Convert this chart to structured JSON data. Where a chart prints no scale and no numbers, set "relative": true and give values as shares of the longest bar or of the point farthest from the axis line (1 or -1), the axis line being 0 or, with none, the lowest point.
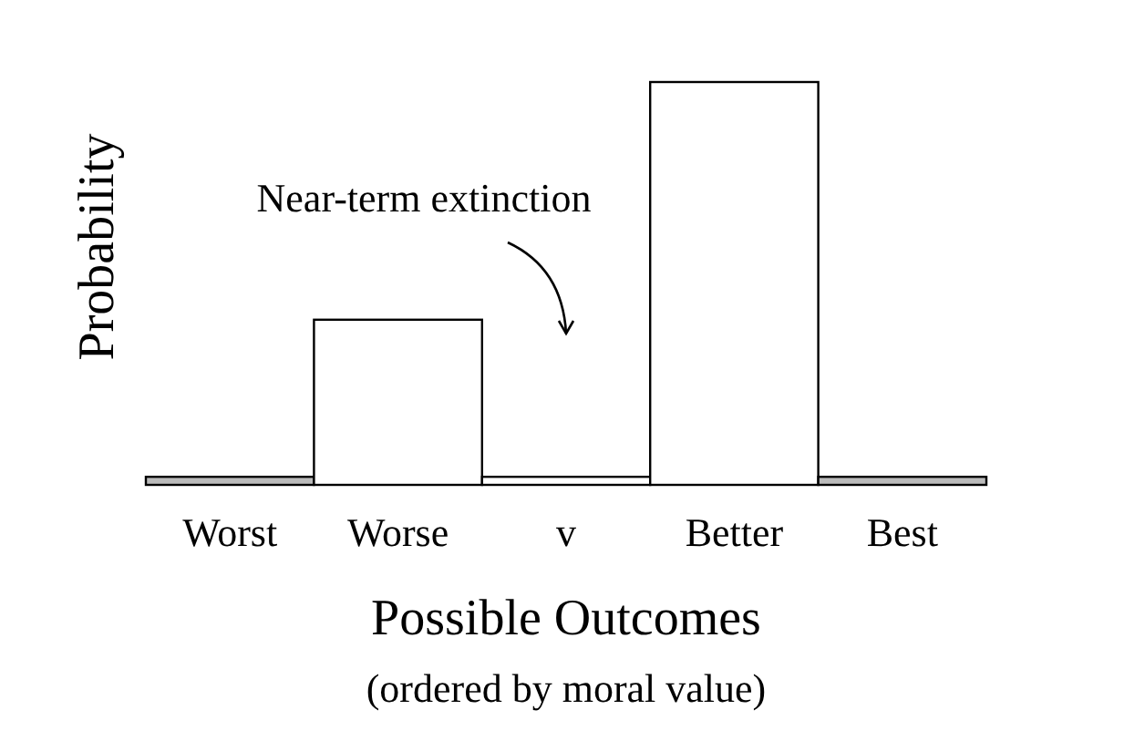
{
  "chart_data": {
    "type": "bar",
    "relative": true,
    "categories": [
      "Worst",
      "Worse",
      "v",
      "Better",
      "Best"
    ],
    "values": [
      0.02,
      0.41,
      0.02,
      1,
      0.02
    ],
    "colors": [
      "#bbbbbb",
      "#ffffff",
      "#ffffff",
      "#ffffff",
      "#bbbbbb"
    ],
    "xlabel": "Possible Outcomes",
    "ylabel": "Probability",
    "annotations": [
      "Near-term extinction",
      "(ordered by moral value)"
    ]
  }
}
